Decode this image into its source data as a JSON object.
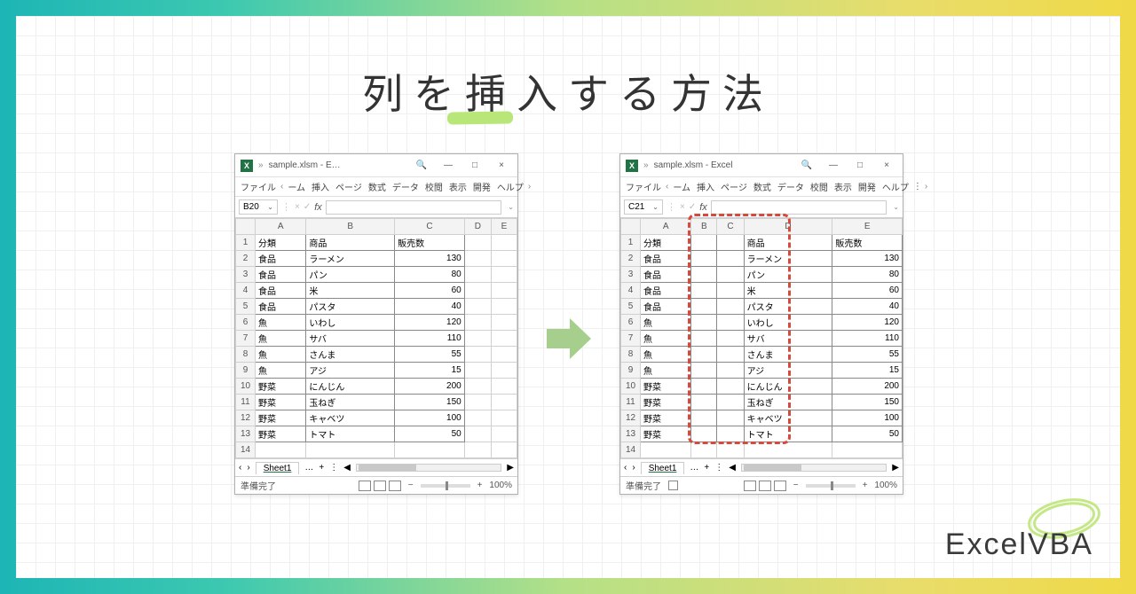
{
  "title": "列を挿入する方法",
  "brand": "ExcelVBA",
  "colors": {
    "gradient_start": "#1db5b5",
    "gradient_end": "#f0d946",
    "highlight": "#b9e678",
    "arrow": "#a6cf8e",
    "red_dash": "#d54a3a",
    "excel_green": "#217346",
    "swirl": "#c5e887"
  },
  "left": {
    "title": "sample.xlsm - E…",
    "name_box": "B   ",
    "menu": [
      "ファイル",
      "ーム",
      "挿入",
      "ページ",
      "数式",
      "データ",
      "校閲",
      "表示",
      "開発",
      "ヘルプ"
    ],
    "columns": [
      "A",
      "B",
      "C",
      "D",
      "E"
    ],
    "name_cell": "B20",
    "sheet_tab": "Sheet1",
    "status": "準備完了",
    "zoom": "100%",
    "headers": [
      "分類",
      "商品",
      "販売数"
    ],
    "rows": [
      [
        "食品",
        "ラーメン",
        "130"
      ],
      [
        "食品",
        "パン",
        "80"
      ],
      [
        "食品",
        "米",
        "60"
      ],
      [
        "食品",
        "パスタ",
        "40"
      ],
      [
        "魚",
        "いわし",
        "120"
      ],
      [
        "魚",
        "サバ",
        "110"
      ],
      [
        "魚",
        "さんま",
        "55"
      ],
      [
        "魚",
        "アジ",
        "15"
      ],
      [
        "野菜",
        "にんじん",
        "200"
      ],
      [
        "野菜",
        "玉ねぎ",
        "150"
      ],
      [
        "野菜",
        "キャベツ",
        "100"
      ],
      [
        "野菜",
        "トマト",
        "50"
      ]
    ]
  },
  "right": {
    "title": "sample.xlsm - Excel",
    "name_box": "C   ",
    "menu": [
      "ファイル",
      "ーム",
      "挿入",
      "ページ",
      "数式",
      "データ",
      "校閲",
      "表示",
      "開発",
      "ヘルプ"
    ],
    "columns": [
      "A",
      "B",
      "C",
      "D",
      "E"
    ],
    "name_cell": "C21",
    "sheet_tab": "Sheet1",
    "status": "準備完了",
    "zoom": "100%",
    "headers": [
      "分類",
      "",
      "",
      "商品",
      "販売数"
    ],
    "rows": [
      [
        "食品",
        "",
        "",
        "ラーメン",
        "130"
      ],
      [
        "食品",
        "",
        "",
        "パン",
        "80"
      ],
      [
        "食品",
        "",
        "",
        "米",
        "60"
      ],
      [
        "食品",
        "",
        "",
        "パスタ",
        "40"
      ],
      [
        "魚",
        "",
        "",
        "いわし",
        "120"
      ],
      [
        "魚",
        "",
        "",
        "サバ",
        "110"
      ],
      [
        "魚",
        "",
        "",
        "さんま",
        "55"
      ],
      [
        "魚",
        "",
        "",
        "アジ",
        "15"
      ],
      [
        "野菜",
        "",
        "",
        "にんじん",
        "200"
      ],
      [
        "野菜",
        "",
        "",
        "玉ねぎ",
        "150"
      ],
      [
        "野菜",
        "",
        "",
        "キャベツ",
        "100"
      ],
      [
        "野菜",
        "",
        "",
        "トマト",
        "50"
      ]
    ],
    "highlight_cols": [
      1,
      2
    ]
  }
}
